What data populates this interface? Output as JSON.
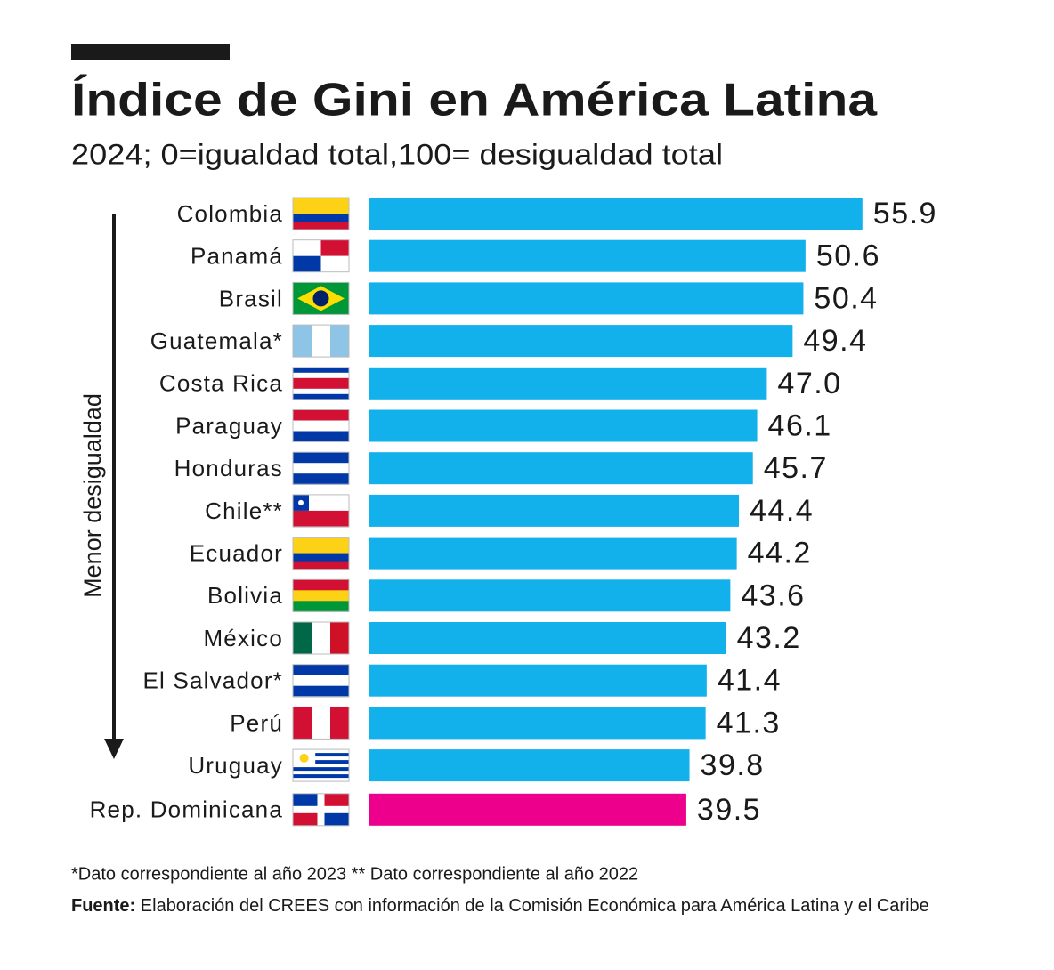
{
  "chart_data": {
    "type": "hbar",
    "title": "Índice de Gini en América Latina",
    "subtitle": "2024; 0=igualdad total,100= desigualdad total",
    "axis_label": "Menor desigualdad",
    "categories": [
      "Colombia",
      "Panamá",
      "Brasil",
      "Guatemala*",
      "Costa Rica",
      "Paraguay",
      "Honduras",
      "Chile**",
      "Ecuador",
      "Bolivia",
      "México",
      "El Salvador*",
      "Perú",
      "Uruguay",
      "Rep. Dominicana"
    ],
    "values": [
      55.9,
      50.6,
      50.4,
      49.4,
      47.0,
      46.1,
      45.7,
      44.4,
      44.2,
      43.6,
      43.2,
      41.4,
      41.3,
      39.8,
      39.5
    ],
    "value_labels": [
      "55.9",
      "50.6",
      "50.4",
      "49.4",
      "47.0",
      "46.1",
      "45.7",
      "44.4",
      "44.2",
      "43.6",
      "43.2",
      "41.4",
      "41.3",
      "39.8",
      "39.5"
    ],
    "colors": [
      "#12b1ec",
      "#12b1ec",
      "#12b1ec",
      "#12b1ec",
      "#12b1ec",
      "#12b1ec",
      "#12b1ec",
      "#12b1ec",
      "#12b1ec",
      "#12b1ec",
      "#12b1ec",
      "#12b1ec",
      "#12b1ec",
      "#12b1ec",
      "#ec008c"
    ],
    "xlim": [
      10,
      56
    ],
    "note": "*Dato correspondiente al año 2023  ** Dato correspondiente al año 2022",
    "source_label": "Fuente:",
    "source": "Elaboración del CREES con información de la Comisión Económica para América Latina y el Caribe"
  }
}
